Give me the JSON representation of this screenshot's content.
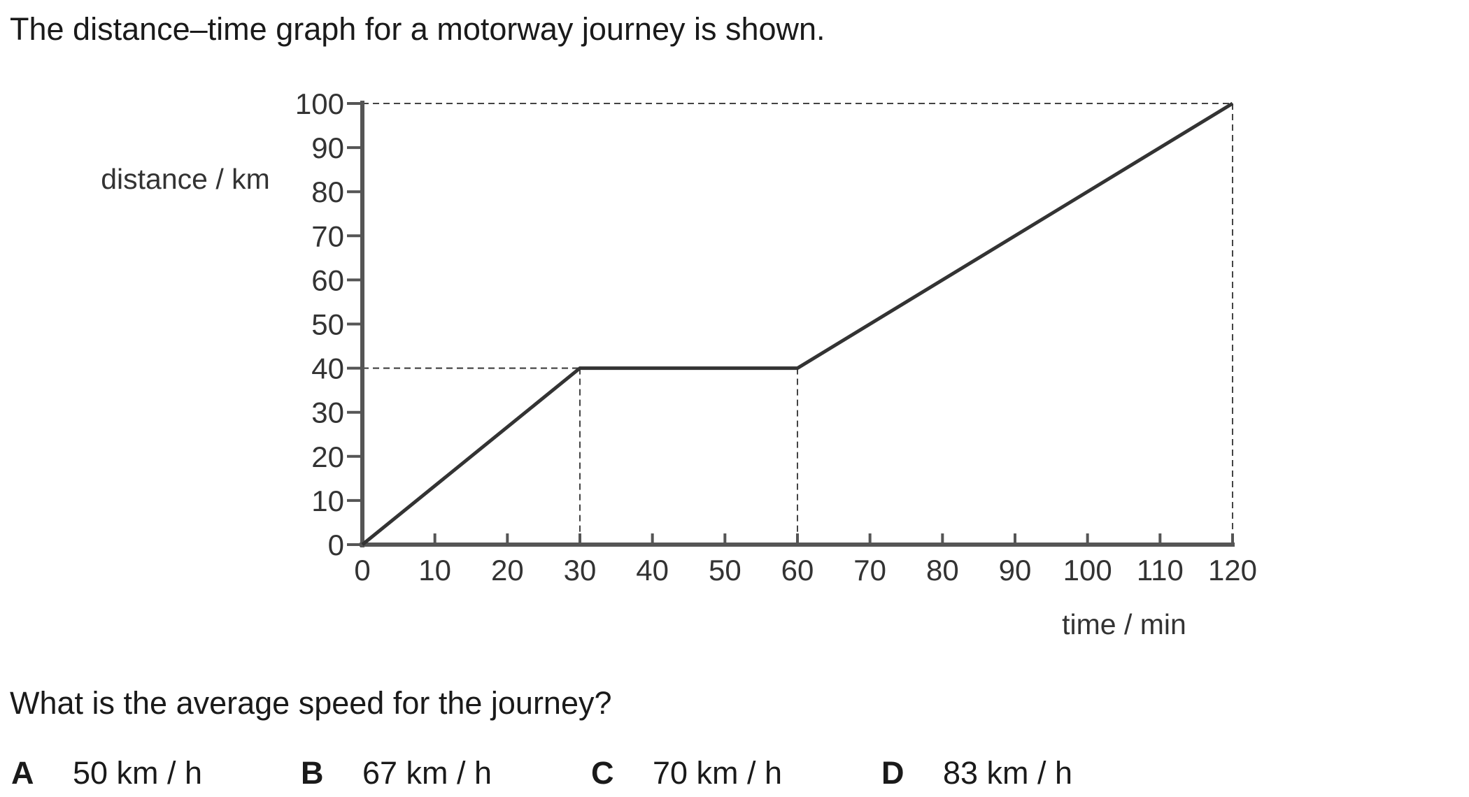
{
  "intro": "The distance–time graph for a motorway journey is shown.",
  "question": "What is the average speed for the journey?",
  "options": [
    {
      "letter": "A",
      "text": "50 km / h"
    },
    {
      "letter": "B",
      "text": "67 km / h"
    },
    {
      "letter": "C",
      "text": "70 km / h"
    },
    {
      "letter": "D",
      "text": "83 km / h"
    }
  ],
  "chart_data": {
    "type": "line",
    "xlabel": "time / min",
    "ylabel": "distance / km",
    "xlim": [
      0,
      120
    ],
    "ylim": [
      0,
      100
    ],
    "x_ticks": [
      0,
      10,
      20,
      30,
      40,
      50,
      60,
      70,
      80,
      90,
      100,
      110,
      120
    ],
    "y_ticks": [
      0,
      10,
      20,
      30,
      40,
      50,
      60,
      70,
      80,
      90,
      100
    ],
    "grid": false,
    "series": [
      {
        "x": [
          0,
          30,
          60,
          120
        ],
        "y": [
          0,
          40,
          40,
          100
        ]
      }
    ],
    "guide_lines": [
      {
        "x": 30,
        "y": 40
      },
      {
        "x": 60,
        "y": 40
      },
      {
        "x": 120,
        "y": 100
      }
    ],
    "colors": {
      "line": "#333333",
      "axis": "#555555"
    }
  }
}
